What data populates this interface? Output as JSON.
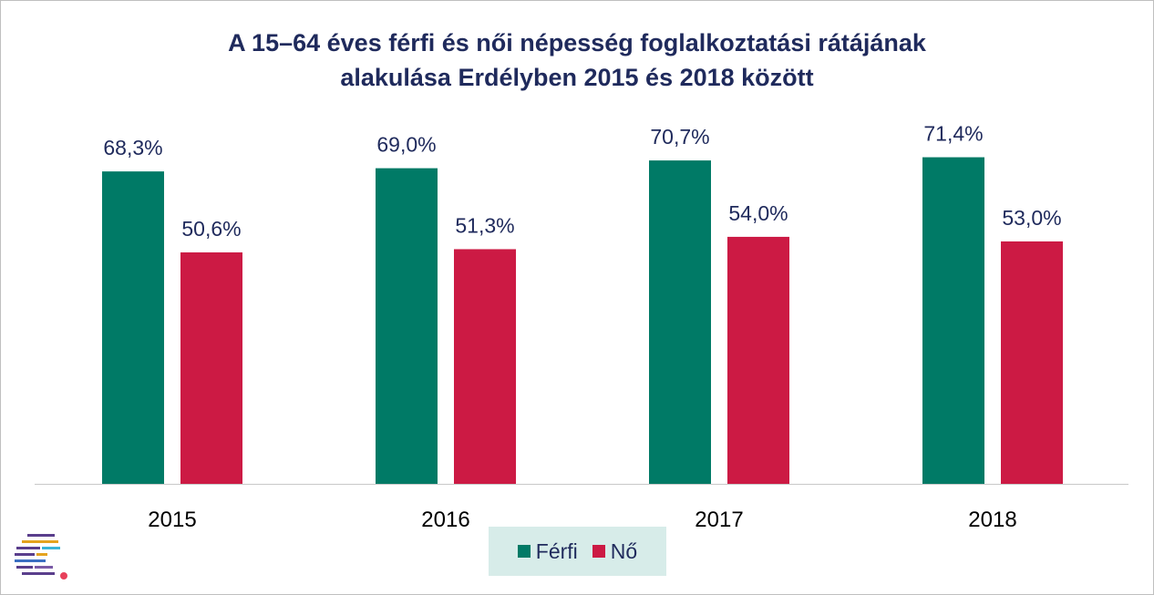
{
  "chart_data": {
    "type": "bar",
    "title_line1": "A 15–64 éves férfi és női népesség foglalkoztatási rátájának",
    "title_line2": "alakulása Erdélyben 2015 és 2018 között",
    "categories": [
      "2015",
      "2016",
      "2017",
      "2018"
    ],
    "series": [
      {
        "name": "Férfi",
        "color": "#007a66",
        "values": [
          68.3,
          69.0,
          70.7,
          71.4
        ],
        "labels": [
          "68,3%",
          "69,0%",
          "70,7%",
          "71,4%"
        ]
      },
      {
        "name": "Nő",
        "color": "#cc1a44",
        "values": [
          50.6,
          51.3,
          54.0,
          53.0
        ],
        "labels": [
          "50,6%",
          "51,3%",
          "54,0%",
          "53,0%"
        ]
      }
    ],
    "ylim": [
      0,
      100
    ],
    "grid": false,
    "legend_position": "bottom-center"
  },
  "legend": {
    "background": "#d7ece9"
  },
  "logo": {
    "icon": "striped-c-logo-icon"
  }
}
